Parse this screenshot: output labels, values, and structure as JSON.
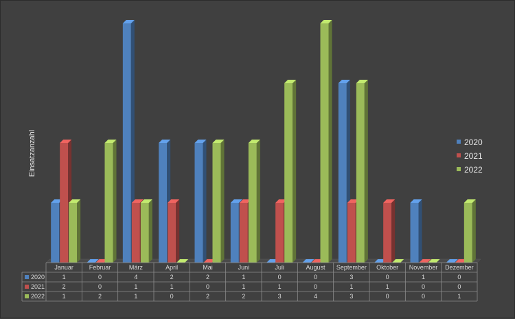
{
  "chart_data": {
    "type": "bar",
    "ylabel": "Einsatzanzahl",
    "ylim": [
      0,
      4
    ],
    "categories": [
      "Januar",
      "Februar",
      "März",
      "April",
      "Mai",
      "Juni",
      "Juli",
      "August",
      "September",
      "Oktober",
      "November",
      "Dezember"
    ],
    "series": [
      {
        "name": "2020",
        "color": "#4f81bd",
        "values": [
          1,
          0,
          4,
          2,
          2,
          1,
          0,
          0,
          3,
          0,
          1,
          0
        ]
      },
      {
        "name": "2021",
        "color": "#c0504d",
        "values": [
          2,
          0,
          1,
          1,
          0,
          1,
          1,
          0,
          1,
          1,
          0,
          0
        ]
      },
      {
        "name": "2022",
        "color": "#9bbb59",
        "values": [
          1,
          2,
          1,
          0,
          2,
          2,
          3,
          4,
          3,
          0,
          0,
          1
        ]
      }
    ],
    "legend_position": "right",
    "grid": false,
    "data_table": true
  }
}
